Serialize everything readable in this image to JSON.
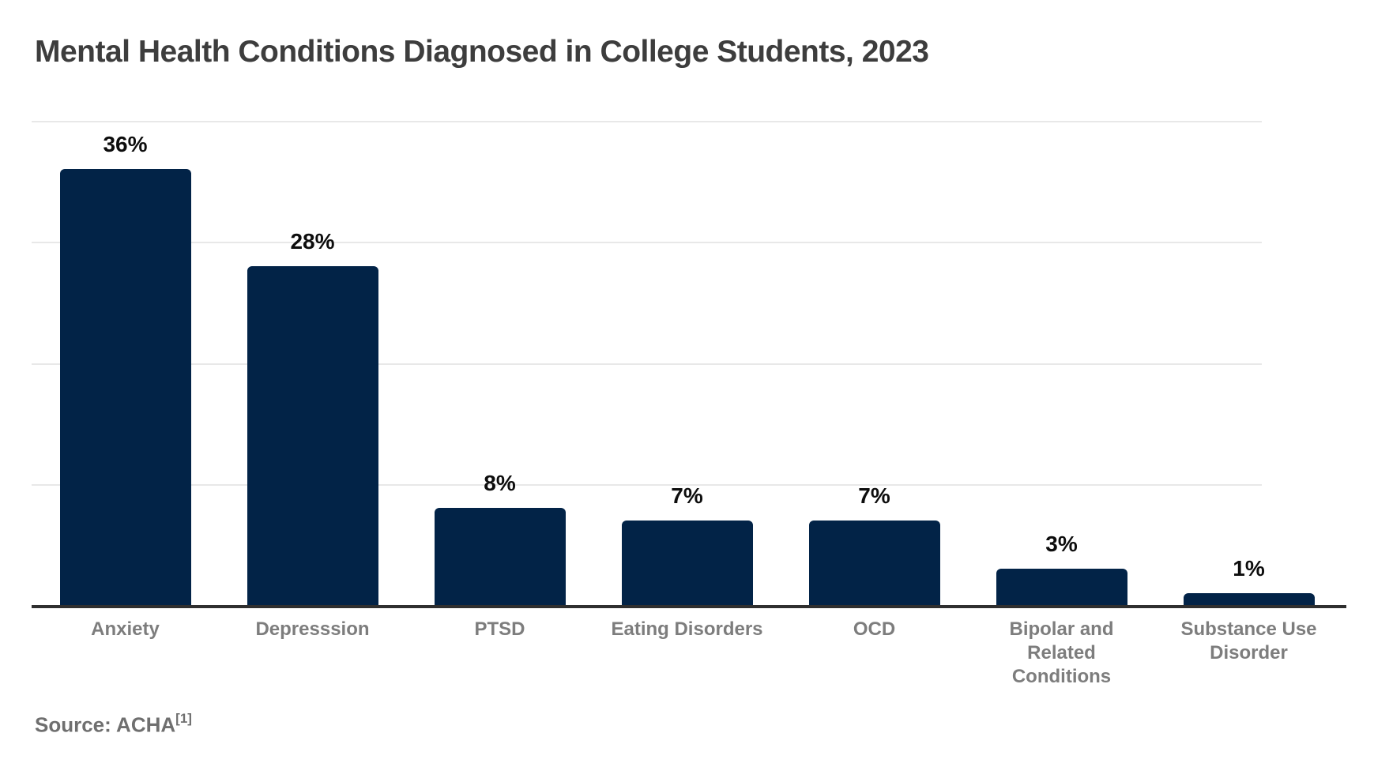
{
  "title": "Mental Health Conditions Diagnosed in College Students, 2023",
  "source": {
    "text": "Source: ACHA",
    "footnote": "[1]"
  },
  "colors": {
    "background": "#ffffff",
    "bar": "#022347",
    "title": "#3d3d3d",
    "value_label": "#0d0d0d",
    "category_label": "#7d7d7d",
    "gridline": "#e8e8e8",
    "axis": "#2f2f2f",
    "source_text": "#6f6f6f"
  },
  "chart_data": {
    "type": "bar",
    "title": "Mental Health Conditions Diagnosed in College Students, 2023",
    "categories": [
      "Anxiety",
      "Depresssion",
      "PTSD",
      "Eating Disorders",
      "OCD",
      "Bipolar and Related Conditions",
      "Substance Use Disorder"
    ],
    "categories_display": [
      [
        "Anxiety"
      ],
      [
        "Depresssion"
      ],
      [
        "PTSD"
      ],
      [
        "Eating Disorders"
      ],
      [
        "OCD"
      ],
      [
        "Bipolar and",
        "Related",
        "Conditions"
      ],
      [
        "Substance Use",
        "Disorder"
      ]
    ],
    "values": [
      36,
      28,
      8,
      7,
      7,
      3,
      1
    ],
    "value_labels": [
      "36%",
      "28%",
      "8%",
      "7%",
      "7%",
      "3%",
      "1%"
    ],
    "xlabel": "",
    "ylabel": "",
    "ylim": [
      0,
      40
    ],
    "grid": true,
    "gridline_values": [
      10,
      20,
      30,
      40
    ],
    "legend": false,
    "bar_color": "#022347"
  }
}
